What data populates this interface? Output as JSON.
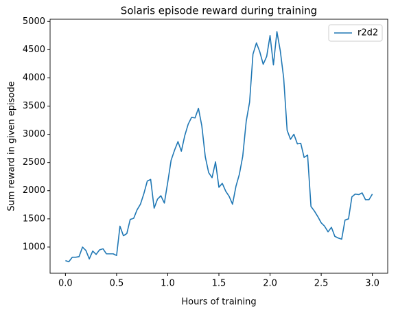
{
  "chart_data": {
    "type": "line",
    "title": "Solaris episode reward during training",
    "x_label": "Hours of training",
    "y_label": "Sum reward in given episode",
    "x": [
      0,
      0.033,
      0.067,
      0.1,
      0.133,
      0.167,
      0.2,
      0.233,
      0.267,
      0.3,
      0.333,
      0.367,
      0.4,
      0.433,
      0.467,
      0.5,
      0.533,
      0.567,
      0.6,
      0.633,
      0.667,
      0.7,
      0.733,
      0.767,
      0.8,
      0.833,
      0.867,
      0.9,
      0.933,
      0.967,
      1.0,
      1.033,
      1.067,
      1.1,
      1.133,
      1.167,
      1.2,
      1.233,
      1.267,
      1.3,
      1.333,
      1.367,
      1.4,
      1.433,
      1.467,
      1.5,
      1.533,
      1.567,
      1.6,
      1.633,
      1.667,
      1.7,
      1.733,
      1.767,
      1.8,
      1.833,
      1.867,
      1.9,
      1.933,
      1.967,
      2.0,
      2.033,
      2.067,
      2.1,
      2.133,
      2.167,
      2.2,
      2.233,
      2.267,
      2.3,
      2.333,
      2.367,
      2.4,
      2.433,
      2.467,
      2.5,
      2.533,
      2.567,
      2.6,
      2.633,
      2.667,
      2.7,
      2.733,
      2.767,
      2.8,
      2.833,
      2.867,
      2.9,
      2.933,
      2.967,
      3.0
    ],
    "series": [
      {
        "name": "r2d2",
        "color": "#1f77b4",
        "values": [
          760,
          740,
          820,
          820,
          830,
          1000,
          940,
          790,
          930,
          870,
          950,
          970,
          880,
          880,
          880,
          850,
          1370,
          1200,
          1240,
          1490,
          1510,
          1660,
          1760,
          1950,
          2170,
          2200,
          1690,
          1850,
          1910,
          1780,
          2150,
          2540,
          2720,
          2870,
          2700,
          2980,
          3180,
          3300,
          3290,
          3460,
          3150,
          2600,
          2320,
          2230,
          2510,
          2060,
          2130,
          1990,
          1900,
          1760,
          2080,
          2290,
          2610,
          3230,
          3570,
          4420,
          4620,
          4460,
          4240,
          4380,
          4750,
          4230,
          4820,
          4480,
          4000,
          3070,
          2910,
          3000,
          2830,
          2840,
          2590,
          2630,
          1720,
          1640,
          1540,
          1430,
          1370,
          1270,
          1350,
          1190,
          1160,
          1140,
          1480,
          1500,
          1890,
          1940,
          1930,
          1960,
          1840,
          1840,
          1940
        ]
      }
    ],
    "xlim": [
      -0.15,
      3.15
    ],
    "ylim": [
      536,
      5040
    ],
    "xticks": [
      {
        "value": 0,
        "label": "0.0"
      },
      0.5,
      {
        "value": 1,
        "label": "1.0"
      },
      1.5,
      {
        "value": 2,
        "label": "2.0"
      },
      2.5,
      {
        "value": 3,
        "label": "3.0"
      }
    ],
    "yticks": [
      1000,
      1500,
      2000,
      2500,
      3000,
      3500,
      4000,
      4500,
      5000
    ],
    "legend": "upper right",
    "grid": false
  }
}
